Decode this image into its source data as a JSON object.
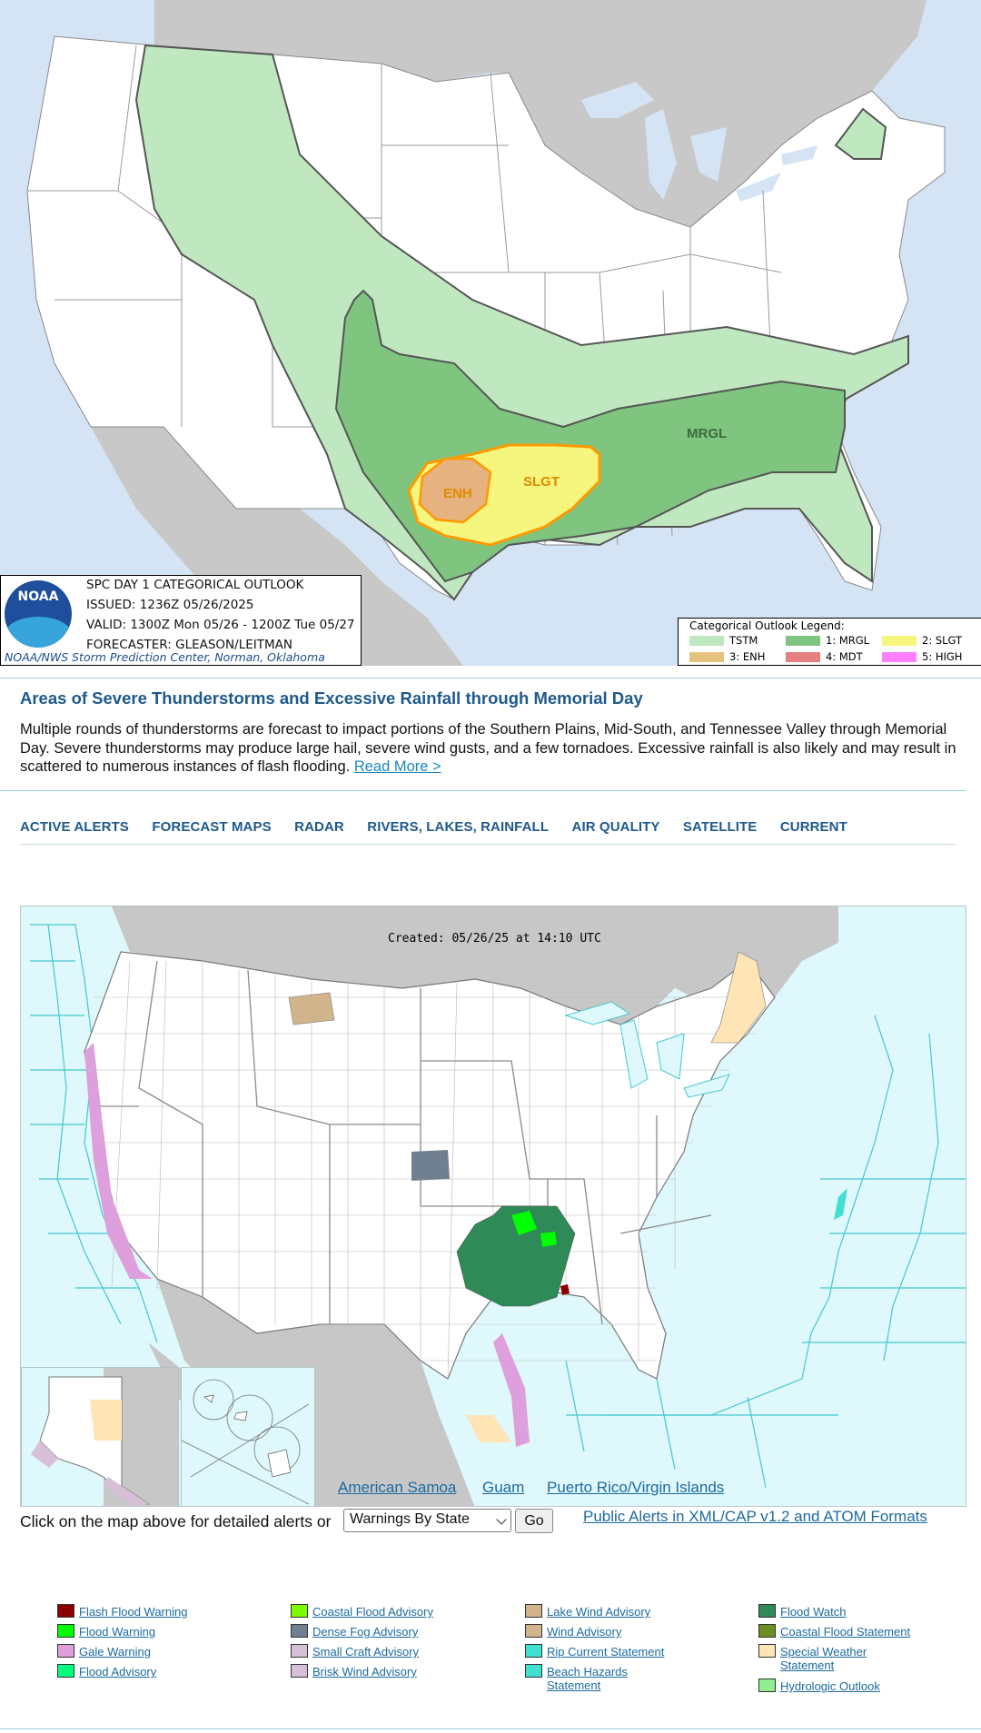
{
  "outlook": {
    "title_line": "SPC DAY 1 CATEGORICAL OUTLOOK",
    "issued_line": "ISSUED: 1236Z 05/26/2025",
    "valid_line": "VALID: 1300Z Mon 05/26 - 1200Z Tue 05/27",
    "forecaster_line": "FORECASTER: GLEASON/LEITMAN",
    "credit": "NOAA/NWS Storm Prediction Center, Norman, Oklahoma",
    "logo_text": "NOAA",
    "region_labels": {
      "mrgl": "MRGL",
      "slgt": "SLGT",
      "enh": "ENH"
    },
    "legend": {
      "title": "Categorical Outlook Legend:",
      "items": [
        {
          "label": "TSTM",
          "color": "#c0e8c0"
        },
        {
          "label": "1: MRGL",
          "color": "#7fc57f"
        },
        {
          "label": "2: SLGT",
          "color": "#f6f67f"
        },
        {
          "label": "3: ENH",
          "color": "#e6c27f"
        },
        {
          "label": "4: MDT",
          "color": "#e67f7f"
        },
        {
          "label": "5: HIGH",
          "color": "#ff7fff"
        }
      ]
    }
  },
  "article": {
    "headline": "Areas of Severe Thunderstorms and Excessive Rainfall through Memorial Day",
    "summary": "Multiple rounds of thunderstorms are forecast to impact portions of the Southern Plains, Mid-South, and Tennessee Valley through Memorial Day. Severe thunderstorms may produce large hail, severe wind gusts, and a few tornadoes. Excessive rainfall is also likely and may result in scattered to numerous instances of flash flooding.",
    "read_more": "Read More >"
  },
  "nav": {
    "items": [
      "ACTIVE ALERTS",
      "FORECAST MAPS",
      "RADAR",
      "RIVERS, LAKES, RAINFALL",
      "AIR QUALITY",
      "SATELLITE",
      "CURRENT"
    ]
  },
  "alerts_map": {
    "created": "Created: 05/26/25 at 14:10 UTC",
    "territories": [
      "American Samoa",
      "Guam",
      "Puerto Rico/Virgin Islands"
    ]
  },
  "alert_form": {
    "prompt": "Click on the map above for detailed alerts or",
    "select_value": "Warnings By State",
    "go_label": "Go",
    "public_link": "Public Alerts in XML/CAP v1.2 and ATOM Formats"
  },
  "key": [
    {
      "label": "Flash Flood Warning",
      "color": "#8b0000"
    },
    {
      "label": "Flood Warning",
      "color": "#00ff00"
    },
    {
      "label": "Gale Warning",
      "color": "#dda0dd"
    },
    {
      "label": "Flood Advisory",
      "color": "#00ff7f"
    },
    {
      "label": "Coastal Flood Advisory",
      "color": "#7cfc00"
    },
    {
      "label": "Dense Fog Advisory",
      "color": "#708090"
    },
    {
      "label": "Small Craft Advisory",
      "color": "#d8bfd8"
    },
    {
      "label": "Brisk Wind Advisory",
      "color": "#d8bfd8"
    },
    {
      "label": "Lake Wind Advisory",
      "color": "#d2b48c"
    },
    {
      "label": "Wind Advisory",
      "color": "#d2b48c"
    },
    {
      "label": "Rip Current Statement",
      "color": "#40e0d0"
    },
    {
      "label": "Beach Hazards Statement",
      "color": "#40e0d0"
    },
    {
      "label": "Flood Watch",
      "color": "#2e8b57"
    },
    {
      "label": "Coastal Flood Statement",
      "color": "#6b8e23"
    },
    {
      "label": "Special Weather Statement",
      "color": "#ffe4b5"
    },
    {
      "label": "Hydrologic Outlook",
      "color": "#90ee90"
    }
  ]
}
